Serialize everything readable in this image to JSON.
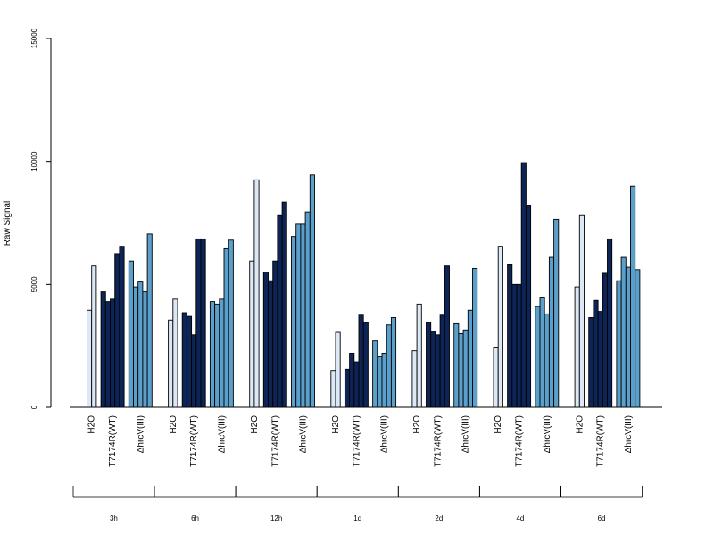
{
  "chart_data": {
    "type": "bar",
    "ylabel": "Raw Signal",
    "ylim": [
      0,
      15000
    ],
    "yticks": [
      0,
      5000,
      10000,
      15000
    ],
    "yticks_labels": [
      "0",
      "5000",
      "10000",
      "15000"
    ],
    "treatments": [
      "H2O",
      "T7174R(WT)",
      "ΔhrcV(III)"
    ],
    "timepoints": [
      "3h",
      "6h",
      "12h",
      "1d",
      "2d",
      "4d",
      "6d"
    ],
    "colors": {
      "H2O": "#dce8f5",
      "T7174R(WT)": "#0c2456",
      "ΔhrcV(III)": "#5b9fcb"
    },
    "groups": [
      {
        "time": "3h",
        "H2O": [
          3950,
          5750
        ],
        "T7174R(WT)": [
          4700,
          4300,
          4400,
          6250,
          6550
        ],
        "ΔhrcV(III)": [
          5950,
          4900,
          5100,
          4700,
          7050
        ]
      },
      {
        "time": "6h",
        "H2O": [
          3550,
          4400
        ],
        "T7174R(WT)": [
          3850,
          3700,
          2950,
          6850,
          6850
        ],
        "ΔhrcV(III)": [
          4300,
          4200,
          4400,
          6450,
          6800
        ]
      },
      {
        "time": "12h",
        "H2O": [
          5950,
          9250
        ],
        "T7174R(WT)": [
          5500,
          5150,
          5950,
          7800,
          8350
        ],
        "ΔhrcV(III)": [
          6950,
          7450,
          7450,
          7950,
          9450
        ]
      },
      {
        "time": "1d",
        "H2O": [
          1500,
          3050
        ],
        "T7174R(WT)": [
          1550,
          2200,
          1850,
          3750,
          3450
        ],
        "ΔhrcV(III)": [
          2700,
          2050,
          2200,
          3350,
          3650
        ]
      },
      {
        "time": "2d",
        "H2O": [
          2300,
          4200
        ],
        "T7174R(WT)": [
          3450,
          3100,
          2950,
          3750,
          5750
        ],
        "ΔhrcV(III)": [
          3400,
          3000,
          3150,
          3950,
          5650
        ]
      },
      {
        "time": "4d",
        "H2O": [
          2450,
          6550
        ],
        "T7174R(WT)": [
          5800,
          5000,
          5000,
          9950,
          8200
        ],
        "ΔhrcV(III)": [
          4100,
          4450,
          3800,
          6100,
          7650
        ]
      },
      {
        "time": "6d",
        "H2O": [
          4900,
          7800
        ],
        "T7174R(WT)": [
          3650,
          4350,
          3900,
          5450,
          6850
        ],
        "ΔhrcV(III)": [
          5150,
          6100,
          5700,
          9000,
          5600
        ]
      }
    ]
  }
}
